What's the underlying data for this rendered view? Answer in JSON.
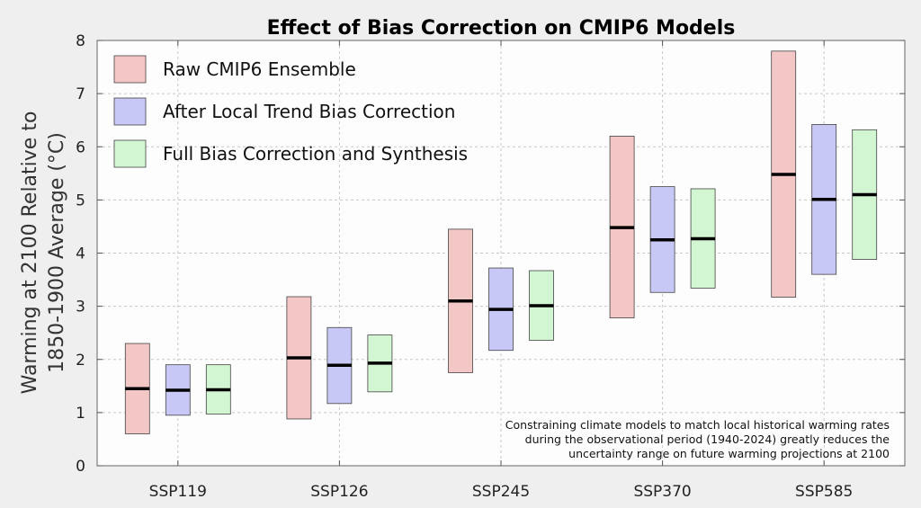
{
  "chart_data": {
    "type": "bar",
    "title": "Effect of Bias Correction on CMIP6 Models",
    "ylabel_lines": [
      "Warming at 2100 Relative to",
      "1850-1900 Average (°C)"
    ],
    "ylim": [
      0,
      8
    ],
    "yticks": [
      "0",
      "1",
      "2",
      "3",
      "4",
      "5",
      "6",
      "7",
      "8"
    ],
    "grid": true,
    "legend_position": "top-left",
    "categories": [
      "SSP119",
      "SSP126",
      "SSP245",
      "SSP370",
      "SSP585"
    ],
    "series": [
      {
        "name": "Raw CMIP6 Ensemble",
        "color": "#f4c7c7",
        "ranges": [
          {
            "low": 0.6,
            "high": 2.3,
            "median": 1.45
          },
          {
            "low": 0.88,
            "high": 3.18,
            "median": 2.03
          },
          {
            "low": 1.75,
            "high": 4.45,
            "median": 3.1
          },
          {
            "low": 2.78,
            "high": 6.2,
            "median": 4.48
          },
          {
            "low": 3.17,
            "high": 7.8,
            "median": 5.48
          }
        ]
      },
      {
        "name": "After Local Trend Bias Correction",
        "color": "#c8c8f6",
        "ranges": [
          {
            "low": 0.95,
            "high": 1.9,
            "median": 1.42
          },
          {
            "low": 1.17,
            "high": 2.6,
            "median": 1.89
          },
          {
            "low": 2.17,
            "high": 3.72,
            "median": 2.94
          },
          {
            "low": 3.26,
            "high": 5.25,
            "median": 4.25
          },
          {
            "low": 3.6,
            "high": 6.42,
            "median": 5.01
          }
        ]
      },
      {
        "name": "Full Bias Correction and Synthesis",
        "color": "#d2f6d2",
        "ranges": [
          {
            "low": 0.97,
            "high": 1.9,
            "median": 1.43
          },
          {
            "low": 1.39,
            "high": 2.46,
            "median": 1.93
          },
          {
            "low": 2.36,
            "high": 3.67,
            "median": 3.01
          },
          {
            "low": 3.34,
            "high": 5.21,
            "median": 4.27
          },
          {
            "low": 3.88,
            "high": 6.32,
            "median": 5.1
          }
        ]
      }
    ],
    "annotation_lines": [
      "Constraining climate models to match local historical warming rates",
      "during the observational period (1940-2024) greatly reduces the",
      "uncertainty range on future warming projections at 2100"
    ]
  }
}
